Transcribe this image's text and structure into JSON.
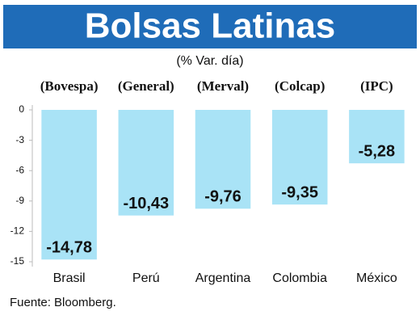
{
  "chart_data": {
    "type": "bar",
    "title": "Bolsas Latinas",
    "subtitle": "(% Var. día)",
    "categories": [
      "Brasil",
      "Perú",
      "Argentina",
      "Colombia",
      "México"
    ],
    "indices": [
      "(Bovespa)",
      "(General)",
      "(Merval)",
      "(Colcap)",
      "(IPC)"
    ],
    "values": [
      -14.78,
      -10.43,
      -9.76,
      -9.35,
      -5.28
    ],
    "value_labels": [
      "-14,78",
      "-10,43",
      "-9,76",
      "-9,35",
      "-5,28"
    ],
    "color": "#a9e3f6",
    "ylim": [
      -15,
      0
    ],
    "yticks": [
      0,
      -3,
      -6,
      -9,
      -12,
      -15
    ],
    "source": "Fuente: Bloomberg."
  }
}
